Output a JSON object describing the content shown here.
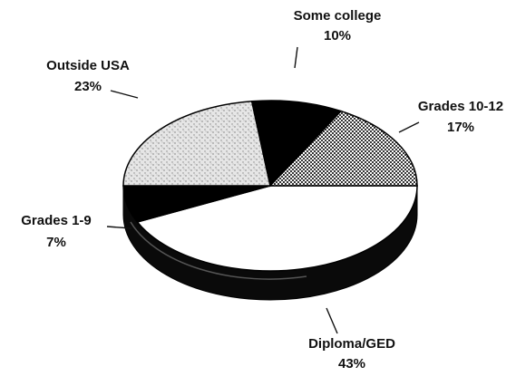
{
  "chart_data": {
    "type": "pie",
    "categories": [
      "Diploma/GED",
      "Grades 1-9",
      "Outside USA",
      "Some college",
      "Grades 10-12"
    ],
    "values": [
      43,
      7,
      23,
      10,
      17
    ],
    "value_labels": [
      "43%",
      "7%",
      "23%",
      "10%",
      "17%"
    ],
    "colors": [
      "#ffffff",
      "#000000",
      "#d8d8d8",
      "#000000",
      "#9a9a9a"
    ]
  }
}
